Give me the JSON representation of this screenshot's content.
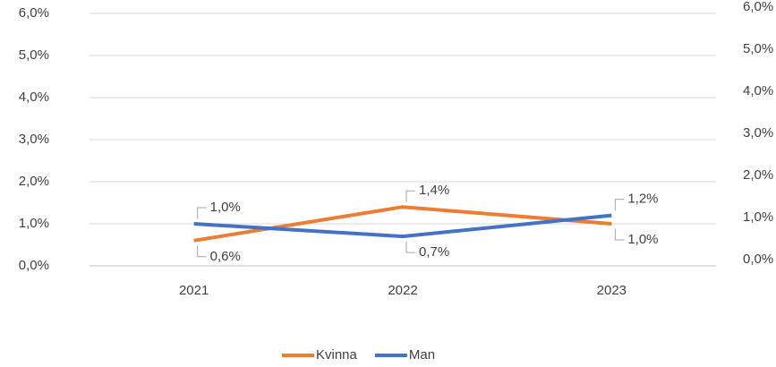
{
  "chart_data": {
    "type": "line",
    "categories": [
      "2021",
      "2022",
      "2023"
    ],
    "series": [
      {
        "name": "Kvinna",
        "color": "#ed7d31",
        "values": [
          0.6,
          1.4,
          1.0
        ],
        "value_labels": [
          "0,6%",
          "1,4%",
          "1,0%"
        ]
      },
      {
        "name": "Man",
        "color": "#4472c4",
        "values": [
          1.0,
          0.7,
          1.2
        ],
        "value_labels": [
          "1,0%",
          "0,7%",
          "1,2%"
        ]
      }
    ],
    "ylim": [
      0,
      6
    ],
    "yticks": [
      {
        "value": 0,
        "label": "0,0%"
      },
      {
        "value": 1,
        "label": "1,0%"
      },
      {
        "value": 2,
        "label": "2,0%"
      },
      {
        "value": 3,
        "label": "3,0%"
      },
      {
        "value": 4,
        "label": "4,0%"
      },
      {
        "value": 5,
        "label": "5,0%"
      },
      {
        "value": 6,
        "label": "6,0%"
      }
    ],
    "y2lim": [
      0,
      6
    ],
    "y2ticks": [
      {
        "value": 0,
        "label": "0,0%"
      },
      {
        "value": 1,
        "label": "1,0%"
      },
      {
        "value": 2,
        "label": "2,0%"
      },
      {
        "value": 3,
        "label": "3,0%"
      },
      {
        "value": 4,
        "label": "4,0%"
      },
      {
        "value": 5,
        "label": "5,0%"
      },
      {
        "value": 6,
        "label": "6,0%"
      }
    ],
    "grid": true,
    "legend": "bottom"
  }
}
